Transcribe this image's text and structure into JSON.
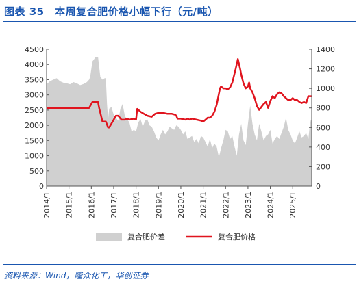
{
  "header": {
    "title": "图表 35　本周复合肥价格小幅下行（元/吨）"
  },
  "footer": {
    "source": "资料来源：Wind，隆众化工，华创证券"
  },
  "colors": {
    "area": "#d0d0d0",
    "line": "#e0141e",
    "title": "#1a56b0"
  },
  "chart_data": {
    "type": "line",
    "title": "",
    "grid": false,
    "legend_position": "bottom",
    "x_tick_labels": [
      "2014/1",
      "2015/1",
      "2016/1",
      "2017/1",
      "2018/1",
      "2019/1",
      "2020/1",
      "2021/1",
      "2022/1",
      "2023/1",
      "2024/1",
      "2025/1"
    ],
    "x_range": [
      2014.0,
      2025.85
    ],
    "left_axis": {
      "ylim": [
        0,
        4500
      ],
      "ticks": [
        0,
        500,
        1000,
        1500,
        2000,
        2500,
        3000,
        3500,
        4000,
        4500
      ]
    },
    "right_axis": {
      "ylim": [
        0,
        1400
      ],
      "ticks": [
        0,
        200,
        400,
        600,
        800,
        1000,
        1200,
        1400
      ]
    },
    "series": [
      {
        "name": "复合肥价差",
        "type": "area",
        "axis": "left",
        "x": [
          2014.0,
          2014.15,
          2014.3,
          2014.45,
          2014.6,
          2014.75,
          2014.9,
          2015.05,
          2015.2,
          2015.35,
          2015.5,
          2015.65,
          2015.8,
          2015.9,
          2015.95,
          2016.05,
          2016.1,
          2016.15,
          2016.2,
          2016.3,
          2016.4,
          2016.45,
          2016.5,
          2016.6,
          2016.65,
          2016.7,
          2016.75,
          2016.8,
          2016.9,
          2017.0,
          2017.1,
          2017.2,
          2017.3,
          2017.4,
          2017.5,
          2017.6,
          2017.7,
          2017.8,
          2017.9,
          2018.0,
          2018.1,
          2018.2,
          2018.3,
          2018.4,
          2018.5,
          2018.6,
          2018.7,
          2018.8,
          2018.9,
          2019.0,
          2019.1,
          2019.2,
          2019.3,
          2019.4,
          2019.5,
          2019.6,
          2019.7,
          2019.8,
          2019.9,
          2020.0,
          2020.1,
          2020.2,
          2020.3,
          2020.4,
          2020.5,
          2020.6,
          2020.7,
          2020.8,
          2020.9,
          2021.0,
          2021.1,
          2021.2,
          2021.3,
          2021.4,
          2021.5,
          2021.6,
          2021.7,
          2021.8,
          2021.9,
          2022.0,
          2022.1,
          2022.2,
          2022.3,
          2022.4,
          2022.5,
          2022.6,
          2022.7,
          2022.8,
          2022.9,
          2023.0,
          2023.1,
          2023.2,
          2023.3,
          2023.4,
          2023.5,
          2023.6,
          2023.7,
          2023.8,
          2023.9,
          2024.0,
          2024.1,
          2024.2,
          2024.3,
          2024.4,
          2024.5,
          2024.6,
          2024.7,
          2024.8,
          2024.9,
          2025.0,
          2025.1,
          2025.2,
          2025.3,
          2025.4,
          2025.5,
          2025.6,
          2025.7,
          2025.75,
          2025.8,
          2025.85
        ],
        "values": [
          3350,
          3450,
          3500,
          3550,
          3450,
          3400,
          3380,
          3350,
          3420,
          3380,
          3320,
          3360,
          3420,
          3500,
          3600,
          4100,
          4150,
          4200,
          4250,
          4250,
          3600,
          3550,
          3500,
          3550,
          3550,
          2700,
          2200,
          2550,
          2600,
          2350,
          2250,
          2150,
          2550,
          2700,
          2300,
          2200,
          2100,
          1800,
          1850,
          1800,
          2100,
          2200,
          1950,
          2150,
          2200,
          2000,
          1950,
          1800,
          1600,
          1500,
          1700,
          1850,
          1700,
          1800,
          1950,
          1900,
          1850,
          2000,
          1950,
          1850,
          1700,
          1800,
          1550,
          1600,
          1650,
          1450,
          1550,
          1400,
          1650,
          1600,
          1450,
          1300,
          1550,
          1250,
          1400,
          1300,
          950,
          1250,
          1500,
          1850,
          1800,
          1550,
          1650,
          1300,
          1000,
          1700,
          2050,
          1500,
          1350,
          2050,
          2650,
          2050,
          1700,
          1500,
          2050,
          1800,
          1500,
          1650,
          1700,
          1850,
          1400,
          1550,
          1650,
          1550,
          1750,
          1950,
          2250,
          1850,
          1700,
          1500,
          1400,
          1600,
          1800,
          1600,
          1650,
          1750,
          1550,
          1900,
          2150,
          2200
        ]
      },
      {
        "name": "复合肥价格",
        "type": "line",
        "axis": "right",
        "x": [
          2014.0,
          2015.0,
          2015.9,
          2016.05,
          2016.3,
          2016.35,
          2016.5,
          2016.65,
          2016.75,
          2016.8,
          2016.9,
          2017.0,
          2017.1,
          2017.2,
          2017.35,
          2017.5,
          2017.6,
          2017.7,
          2017.9,
          2018.0,
          2018.05,
          2018.2,
          2018.35,
          2018.5,
          2018.7,
          2018.85,
          2019.0,
          2019.2,
          2019.4,
          2019.6,
          2019.75,
          2019.8,
          2019.85,
          2020.0,
          2020.2,
          2020.3,
          2020.4,
          2020.5,
          2020.7,
          2020.9,
          2021.0,
          2021.1,
          2021.2,
          2021.3,
          2021.4,
          2021.5,
          2021.6,
          2021.75,
          2021.8,
          2021.9,
          2022.0,
          2022.1,
          2022.2,
          2022.3,
          2022.45,
          2022.55,
          2022.65,
          2022.7,
          2022.8,
          2022.9,
          2023.0,
          2023.05,
          2023.1,
          2023.2,
          2023.3,
          2023.4,
          2023.5,
          2023.6,
          2023.7,
          2023.8,
          2023.9,
          2024.0,
          2024.1,
          2024.2,
          2024.3,
          2024.4,
          2024.5,
          2024.6,
          2024.7,
          2024.8,
          2024.9,
          2025.0,
          2025.1,
          2025.2,
          2025.3,
          2025.4,
          2025.5,
          2025.6,
          2025.7,
          2025.85
        ],
        "values": [
          800,
          800,
          800,
          860,
          860,
          800,
          660,
          660,
          600,
          600,
          640,
          680,
          720,
          720,
          680,
          680,
          690,
          680,
          690,
          680,
          790,
          760,
          740,
          720,
          710,
          740,
          750,
          750,
          740,
          740,
          730,
          720,
          690,
          690,
          680,
          690,
          680,
          690,
          680,
          670,
          660,
          680,
          700,
          700,
          720,
          760,
          830,
          1000,
          1020,
          1000,
          1000,
          990,
          1010,
          1060,
          1200,
          1300,
          1200,
          1140,
          1050,
          1000,
          1020,
          1060,
          1000,
          960,
          900,
          820,
          780,
          810,
          840,
          860,
          800,
          870,
          920,
          900,
          940,
          960,
          950,
          920,
          900,
          880,
          880,
          900,
          880,
          880,
          860,
          850,
          860,
          850,
          920,
          920
        ]
      }
    ]
  }
}
